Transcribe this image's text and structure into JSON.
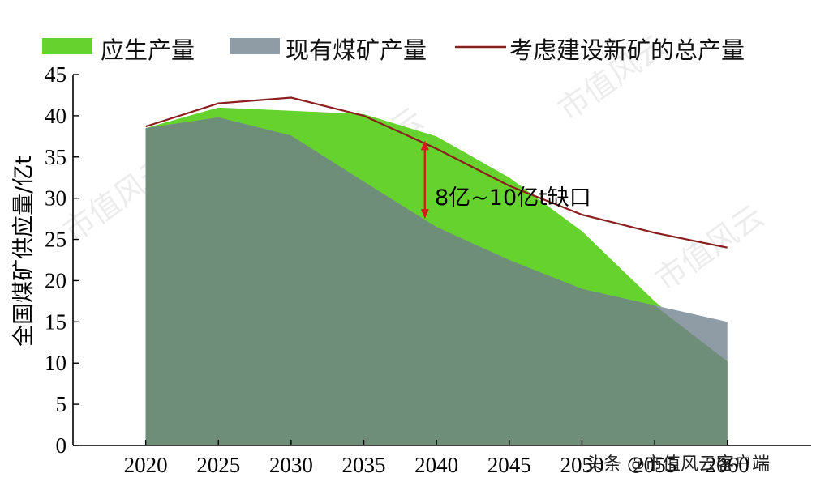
{
  "legend": {
    "green_label": "应生产量",
    "gray_label": "现有煤矿产量",
    "line_label": "考虑建设新矿的总产量"
  },
  "ylabel": "全国煤矿供应量/亿t",
  "annotation": "8亿~10亿t缺口",
  "caption": "头条 @市值风云客户端",
  "watermark_text": "市值风云",
  "colors": {
    "required": "#66d22e",
    "existing": "#6f8e79",
    "existing_exposed": "#8f9ba5",
    "total_line": "#8b1e1e",
    "gap_arrow": "#d61a1a"
  },
  "chart_data": {
    "type": "area",
    "x": [
      2020,
      2025,
      2030,
      2035,
      2040,
      2045,
      2050,
      2055,
      2060
    ],
    "xlim": [
      2020,
      2060
    ],
    "ylim": [
      0,
      45
    ],
    "yticks": [
      0,
      5,
      10,
      15,
      20,
      25,
      30,
      35,
      40,
      45
    ],
    "xticks": [
      "2020",
      "2025",
      "2030",
      "2035",
      "2040",
      "2045",
      "2050",
      "2055",
      "2060"
    ],
    "series": [
      {
        "name": "应生产量",
        "kind": "area",
        "values": [
          38.5,
          41.0,
          40.6,
          40.2,
          37.5,
          32.5,
          26.0,
          17.5,
          10.2
        ]
      },
      {
        "name": "现有煤矿产量",
        "kind": "area",
        "values": [
          38.5,
          39.8,
          37.6,
          32.0,
          26.5,
          22.5,
          19.0,
          17.0,
          15.0
        ]
      },
      {
        "name": "考虑建设新矿的总产量",
        "kind": "line",
        "values": [
          38.7,
          41.5,
          42.2,
          40.0,
          36.0,
          31.5,
          28.0,
          25.8,
          24.0
        ]
      }
    ],
    "annotation": {
      "text": "8亿~10亿t缺口",
      "x": 2039.2,
      "y_from": 27.5,
      "y_to": 37.0
    }
  }
}
